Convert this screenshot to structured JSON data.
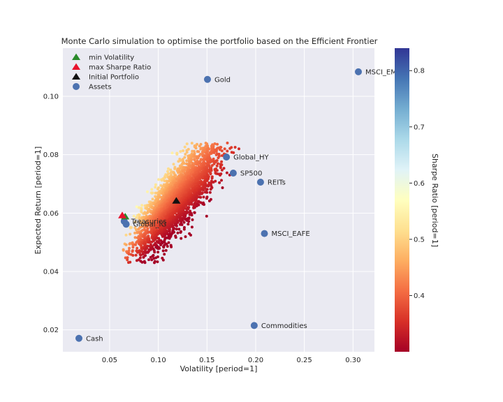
{
  "chart_data": {
    "type": "scatter",
    "title": "Monte Carlo simulation to optimise the portfolio based on the Efficient Frontier",
    "xlabel": "Volatility [period=1]",
    "ylabel": "Expected Return [period=1]",
    "xlim": [
      0.002,
      0.322
    ],
    "ylim": [
      0.0125,
      0.1165
    ],
    "xticks": [
      0.05,
      0.1,
      0.15,
      0.2,
      0.25,
      0.3
    ],
    "xtick_labels": [
      "0.05",
      "0.10",
      "0.15",
      "0.20",
      "0.25",
      "0.30"
    ],
    "yticks": [
      0.02,
      0.04,
      0.06,
      0.08,
      0.1
    ],
    "ytick_labels": [
      "0.02",
      "0.04",
      "0.06",
      "0.08",
      "0.10"
    ],
    "grid": true,
    "background": "#eaeaf2",
    "legend_position": "top-left",
    "legend": [
      {
        "label": "min Volatility",
        "marker": "triangle",
        "color": "#2a8a2a"
      },
      {
        "label": "max Sharpe Ratio",
        "marker": "triangle",
        "color": "#e8132d"
      },
      {
        "label": "Initial Portfolio",
        "marker": "triangle",
        "color": "#111111"
      },
      {
        "label": "Assets",
        "marker": "circle",
        "color": "#4c72b0"
      }
    ],
    "assets": [
      {
        "name": "Cash",
        "x": 0.0185,
        "y": 0.0171
      },
      {
        "name": "Treasuries",
        "x": 0.065,
        "y": 0.0572
      },
      {
        "name": "Global_IG",
        "x": 0.067,
        "y": 0.0562
      },
      {
        "name": "Gold",
        "x": 0.1505,
        "y": 0.1058
      },
      {
        "name": "Global_HY",
        "x": 0.17,
        "y": 0.0792
      },
      {
        "name": "SP500",
        "x": 0.177,
        "y": 0.0737
      },
      {
        "name": "REITs",
        "x": 0.205,
        "y": 0.0706
      },
      {
        "name": "MSCI_EAFE",
        "x": 0.209,
        "y": 0.053
      },
      {
        "name": "Commodities",
        "x": 0.1985,
        "y": 0.0215
      },
      {
        "name": "MSCI_EM",
        "x": 0.3055,
        "y": 0.1084
      }
    ],
    "markers": {
      "min_volatility": {
        "x": 0.066,
        "y": 0.0588
      },
      "max_sharpe": {
        "x": 0.063,
        "y": 0.0592
      },
      "initial_portfolio": {
        "x": 0.1185,
        "y": 0.0642
      }
    },
    "simulation": {
      "description_points": "random portfolios coloured by Sharpe Ratio",
      "vol_range": [
        0.061,
        0.195
      ],
      "ret_range": [
        0.043,
        0.084
      ],
      "sharpe_range": [
        0.3,
        0.84
      ]
    },
    "colorbar": {
      "label": "Sharpe Ratio [period=1]",
      "range": [
        0.3,
        0.84
      ],
      "ticks": [
        0.4,
        0.5,
        0.6,
        0.7,
        0.8
      ],
      "tick_labels": [
        "0.4",
        "0.5",
        "0.6",
        "0.7",
        "0.8"
      ],
      "colormap": "RdYlBu",
      "colors": [
        "#a50026",
        "#d73027",
        "#f46d43",
        "#fdae61",
        "#fee090",
        "#ffffbf",
        "#e0f3f8",
        "#abd9e9",
        "#74add1",
        "#4575b4",
        "#313695"
      ]
    }
  }
}
